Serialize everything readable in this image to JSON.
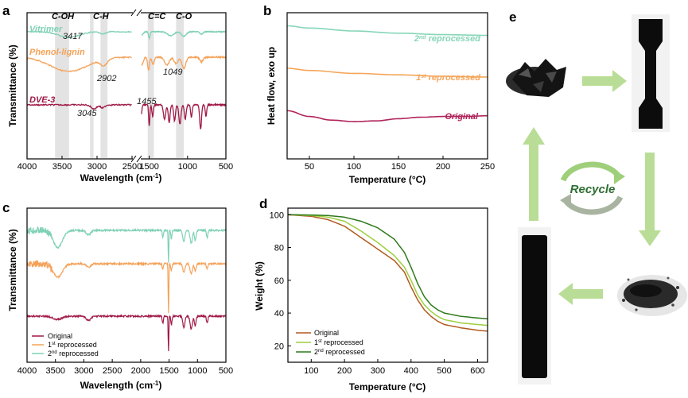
{
  "panel_labels": {
    "a": "a",
    "b": "b",
    "c": "c",
    "d": "d",
    "e": "e"
  },
  "colors": {
    "vitrimer": "#7fd1b5",
    "phenol": "#f4a259",
    "dve": "#a01845",
    "orig_b": "#b0245a",
    "rep1_b": "#f5a55a",
    "rep2_b": "#86d6b8",
    "d_orig": "#b25a1e",
    "d_rep1": "#9ccf3f",
    "d_rep2": "#2f7a1c",
    "arrow": "#b9dd96"
  },
  "chart_data": [
    {
      "panel": "a",
      "type": "line",
      "xlabel": "Wavelength (cm",
      "xlabel_sup": "-1",
      "xlabel_end": ")",
      "ylabel": "Transmittance (%)",
      "xticks": [
        "4000",
        "3500",
        "3000",
        "2500",
        "1500",
        "1000",
        "500"
      ],
      "broken_axis": true,
      "xlim": [
        4000,
        500
      ],
      "shaded_bands": [
        {
          "label": "C-OH",
          "x": [
            3600,
            3400
          ]
        },
        {
          "label": "C-H",
          "x": [
            3100,
            3050
          ]
        },
        {
          "label": "",
          "x": [
            2950,
            2850
          ]
        },
        {
          "label": "C=C",
          "x": [
            1520,
            1440
          ]
        },
        {
          "label": "C-O",
          "x": [
            1150,
            1050
          ]
        }
      ],
      "series": [
        {
          "name": "Vitrimer",
          "annotation": "3417"
        },
        {
          "name": "Phenol-lignin",
          "annotations": [
            "2902",
            "1049"
          ]
        },
        {
          "name": "DVE-3",
          "annotations": [
            "3045",
            "1455"
          ]
        }
      ]
    },
    {
      "panel": "b",
      "type": "line",
      "xlabel": "Temperature (°C)",
      "ylabel": "Heat flow, exo up",
      "xticks": [
        "50",
        "100",
        "150",
        "200",
        "250"
      ],
      "xlim": [
        25,
        250
      ],
      "series": [
        {
          "name": "2nd reprocessed",
          "label_base": "2",
          "label_sup": "nd",
          "label_rest": " reprocessed",
          "x": [
            25,
            50,
            100,
            150,
            200,
            250
          ],
          "y": [
            0.91,
            0.895,
            0.875,
            0.86,
            0.85,
            0.845
          ]
        },
        {
          "name": "1st reprocessed",
          "label_base": "1",
          "label_sup": "st",
          "label_rest": " reprocessed",
          "x": [
            25,
            50,
            100,
            150,
            200,
            250
          ],
          "y": [
            0.62,
            0.605,
            0.585,
            0.575,
            0.565,
            0.56
          ]
        },
        {
          "name": "Original",
          "label_base": "Original",
          "label_sup": "",
          "label_rest": "",
          "x": [
            25,
            50,
            75,
            100,
            125,
            150,
            175,
            200,
            225,
            250
          ],
          "y": [
            0.33,
            0.29,
            0.265,
            0.255,
            0.26,
            0.275,
            0.285,
            0.29,
            0.29,
            0.295
          ]
        }
      ]
    },
    {
      "panel": "c",
      "type": "line",
      "xlabel": "Wavelength (cm",
      "xlabel_sup": "-1",
      "xlabel_end": ")",
      "ylabel": "Transmittance (%)",
      "xticks": [
        "4000",
        "3500",
        "3000",
        "2500",
        "2000",
        "1500",
        "1000",
        "500"
      ],
      "xlim": [
        4000,
        500
      ],
      "legend": [
        "Original",
        "1st  reprocessed",
        "2nd reprocessed"
      ],
      "series": [
        {
          "name": "Original"
        },
        {
          "name": "1st reprocessed"
        },
        {
          "name": "2nd reprocessed"
        }
      ]
    },
    {
      "panel": "d",
      "type": "line",
      "xlabel": "Temperature (°C)",
      "ylabel": "Weight (%)",
      "xticks": [
        "100",
        "200",
        "300",
        "400",
        "500",
        "600"
      ],
      "yticks": [
        "20",
        "40",
        "60",
        "80",
        "100"
      ],
      "xlim": [
        30,
        630
      ],
      "ylim": [
        10,
        104
      ],
      "legend": [
        "Original",
        "1st reprocessed",
        "2nd reprocessed"
      ],
      "series": [
        {
          "name": "Original",
          "x": [
            30,
            100,
            150,
            200,
            250,
            300,
            350,
            380,
            400,
            420,
            440,
            460,
            480,
            500,
            550,
            600,
            630
          ],
          "y": [
            100,
            99,
            97,
            93,
            86,
            79,
            72,
            65,
            56,
            48,
            42,
            38,
            35,
            33,
            31,
            29.5,
            29
          ]
        },
        {
          "name": "1st reprocessed",
          "x": [
            30,
            100,
            150,
            200,
            250,
            300,
            350,
            380,
            400,
            420,
            440,
            460,
            480,
            500,
            550,
            600,
            630
          ],
          "y": [
            100,
            99.5,
            98.5,
            96,
            90,
            83,
            75,
            68,
            60,
            51,
            45,
            41,
            38,
            36,
            34,
            33,
            32.5
          ]
        },
        {
          "name": "2nd reprocessed",
          "x": [
            30,
            100,
            150,
            200,
            250,
            300,
            350,
            380,
            400,
            420,
            440,
            460,
            480,
            500,
            550,
            600,
            630
          ],
          "y": [
            100,
            99.8,
            99.5,
            98.5,
            96,
            92,
            85,
            77,
            68,
            58,
            50,
            45,
            42,
            40,
            38,
            37,
            36.5
          ]
        }
      ]
    }
  ],
  "panel_e": {
    "recycle_label": "Recycle"
  }
}
